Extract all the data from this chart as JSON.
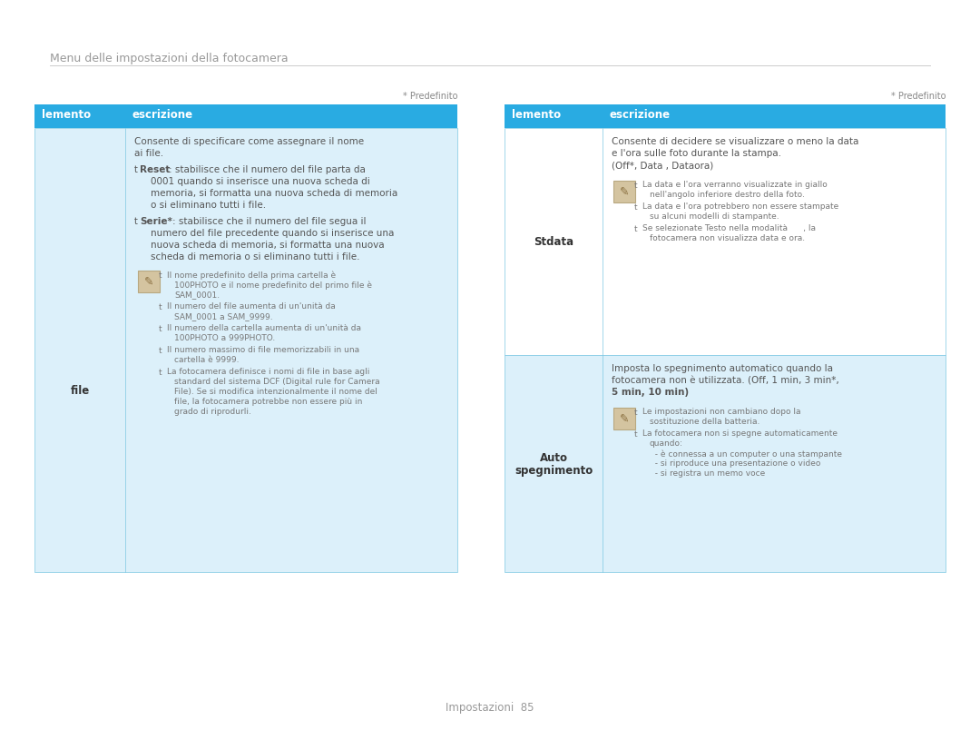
{
  "title": "Menu delle impostazioni della fotocamera",
  "predefinito": "* Predefinito",
  "header_bg": "#29ABE2",
  "row_bg_light": "#DCF0FA",
  "row_bg_white": "#FFFFFF",
  "border_color": "#7EC8E3",
  "title_color": "#999999",
  "body_color": "#555555",
  "label_color": "#333333",
  "note_color": "#777777",
  "page_footer": "Impostazioni  85"
}
